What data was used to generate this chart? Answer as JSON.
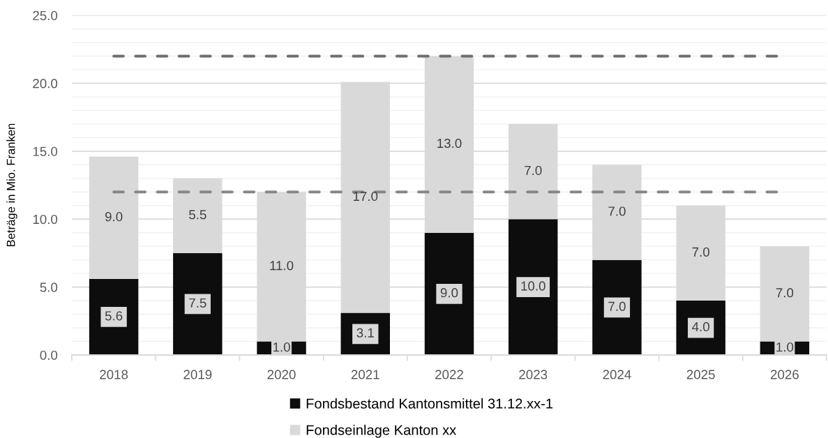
{
  "chart_data": {
    "type": "bar",
    "stacked": true,
    "ylabel": "Beträge in Mio. Franken",
    "categories": [
      "2018",
      "2019",
      "2020",
      "2021",
      "2022",
      "2023",
      "2024",
      "2025",
      "2026"
    ],
    "series": [
      {
        "name": "Fondsbestand Kantonsmittel 31.12.xx-1",
        "color": "#0d0d0d",
        "values": [
          5.6,
          7.5,
          1.0,
          3.1,
          9.0,
          10.0,
          7.0,
          4.0,
          1.0
        ],
        "value_labels": [
          "5.6",
          "7.5",
          "1.0",
          "3.1",
          "9.0",
          "10.0",
          "7.0",
          "4.0",
          "1.0"
        ]
      },
      {
        "name": "Fondseinlage Kanton xx",
        "color": "#d9d9d9",
        "values": [
          9.0,
          5.5,
          11.0,
          17.0,
          13.0,
          7.0,
          7.0,
          7.0,
          7.0
        ],
        "value_labels": [
          "9.0",
          "5.5",
          "11.0",
          "17.0",
          "13.0",
          "7.0",
          "7.0",
          "7.0",
          "7.0"
        ]
      }
    ],
    "ylim": [
      0,
      25
    ],
    "yticks": [
      {
        "value": 0,
        "label": "0.0"
      },
      {
        "value": 1,
        "label": null
      },
      {
        "value": 2,
        "label": null
      },
      {
        "value": 3,
        "label": null
      },
      {
        "value": 4,
        "label": null
      },
      {
        "value": 5,
        "label": "5.0"
      },
      {
        "value": 6,
        "label": null
      },
      {
        "value": 7,
        "label": null
      },
      {
        "value": 8,
        "label": null
      },
      {
        "value": 9,
        "label": null
      },
      {
        "value": 10,
        "label": "10.0"
      },
      {
        "value": 11,
        "label": null
      },
      {
        "value": 12,
        "label": null
      },
      {
        "value": 13,
        "label": null
      },
      {
        "value": 14,
        "label": null
      },
      {
        "value": 15,
        "label": "15.0"
      },
      {
        "value": 16,
        "label": null
      },
      {
        "value": 17,
        "label": null
      },
      {
        "value": 18,
        "label": null
      },
      {
        "value": 19,
        "label": null
      },
      {
        "value": 20,
        "label": "20.0"
      },
      {
        "value": 21,
        "label": null
      },
      {
        "value": 22,
        "label": null
      },
      {
        "value": 23,
        "label": null
      },
      {
        "value": 24,
        "label": null
      },
      {
        "value": 25,
        "label": "25.0"
      }
    ],
    "grid": "y",
    "legend": "bottom",
    "ref_lines": [
      {
        "axis": "y",
        "value": 22,
        "color": "#6f6f6f",
        "line_style": "dashed"
      },
      {
        "axis": "y",
        "value": 12,
        "color": "#878787",
        "line_style": "dashed"
      }
    ]
  }
}
